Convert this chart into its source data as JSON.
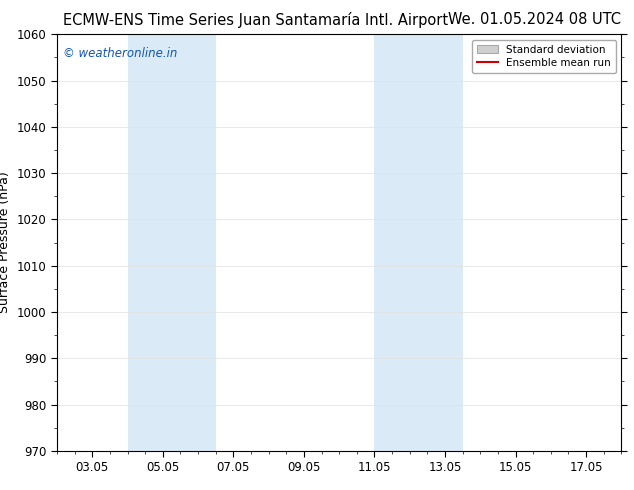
{
  "title_left": "ECMW-ENS Time Series Juan Santamaría Intl. Airport",
  "title_right": "We. 01.05.2024 08 UTC",
  "ylabel": "Surface Pressure (hPa)",
  "watermark": "© weatheronline.in",
  "ylim": [
    970,
    1060
  ],
  "yticks": [
    970,
    980,
    990,
    1000,
    1010,
    1020,
    1030,
    1040,
    1050,
    1060
  ],
  "xtick_labels": [
    "03.05",
    "05.05",
    "07.05",
    "09.05",
    "11.05",
    "13.05",
    "15.05",
    "17.05"
  ],
  "xtick_positions": [
    2,
    4,
    6,
    8,
    10,
    12,
    14,
    16
  ],
  "xmin": 1,
  "xmax": 17,
  "shade_bands": [
    {
      "xmin": 3.0,
      "xmax": 5.5,
      "color": "#daeaf7"
    },
    {
      "xmin": 10.0,
      "xmax": 12.5,
      "color": "#daeaf7"
    }
  ],
  "ensemble_mean_color": "#cc0000",
  "std_dev_fill_color": "#d0d0d0",
  "std_dev_edge_color": "#aaaaaa",
  "legend_std_label": "Standard deviation",
  "legend_mean_label": "Ensemble mean run",
  "background_color": "#ffffff",
  "plot_bg_color": "#ffffff",
  "title_fontsize": 10.5,
  "axis_label_fontsize": 9,
  "tick_fontsize": 8.5,
  "watermark_color": "#1155bb",
  "watermark_fontsize": 8.5
}
